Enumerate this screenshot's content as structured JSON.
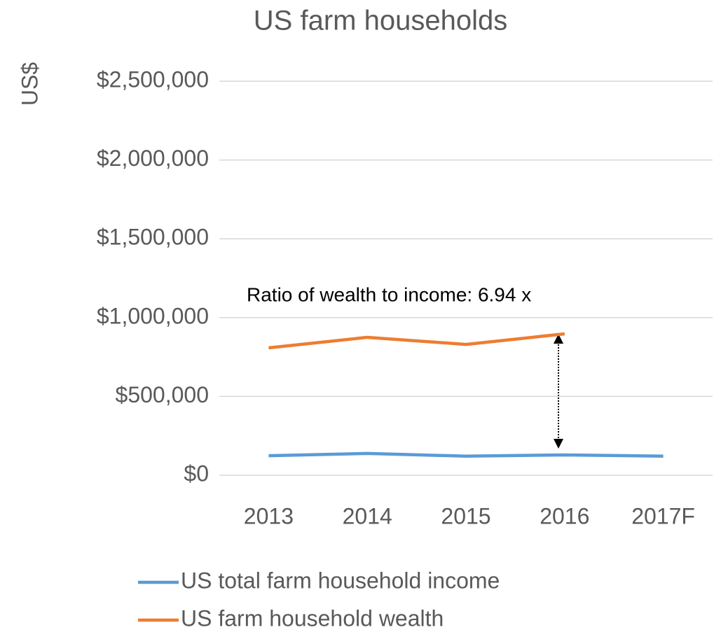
{
  "chart_data": {
    "type": "line",
    "title": "US farm households",
    "y_label": "US$",
    "annotation": "Ratio of wealth to income: 6.94 x",
    "categories": [
      "2013",
      "2014",
      "2015",
      "2016",
      "2017F"
    ],
    "series": [
      {
        "name": "US total farm household income",
        "color": "#5b9bd5",
        "values": [
          124000,
          138000,
          121000,
          129000,
          121000
        ]
      },
      {
        "name": "US farm household wealth",
        "color": "#ed7d31",
        "values": [
          808000,
          875000,
          830000,
          897000,
          null
        ]
      }
    ],
    "ylim": [
      0,
      2500000
    ],
    "yticks": [
      {
        "value": 0,
        "label": "$0"
      },
      {
        "value": 500000,
        "label": "$500,000"
      },
      {
        "value": 1000000,
        "label": "$1,000,000"
      },
      {
        "value": 1500000,
        "label": "$1,500,000"
      },
      {
        "value": 2000000,
        "label": "$2,000,000"
      },
      {
        "value": 2500000,
        "label": "$2,500,000"
      }
    ],
    "grid": true,
    "legend": "bottom"
  }
}
